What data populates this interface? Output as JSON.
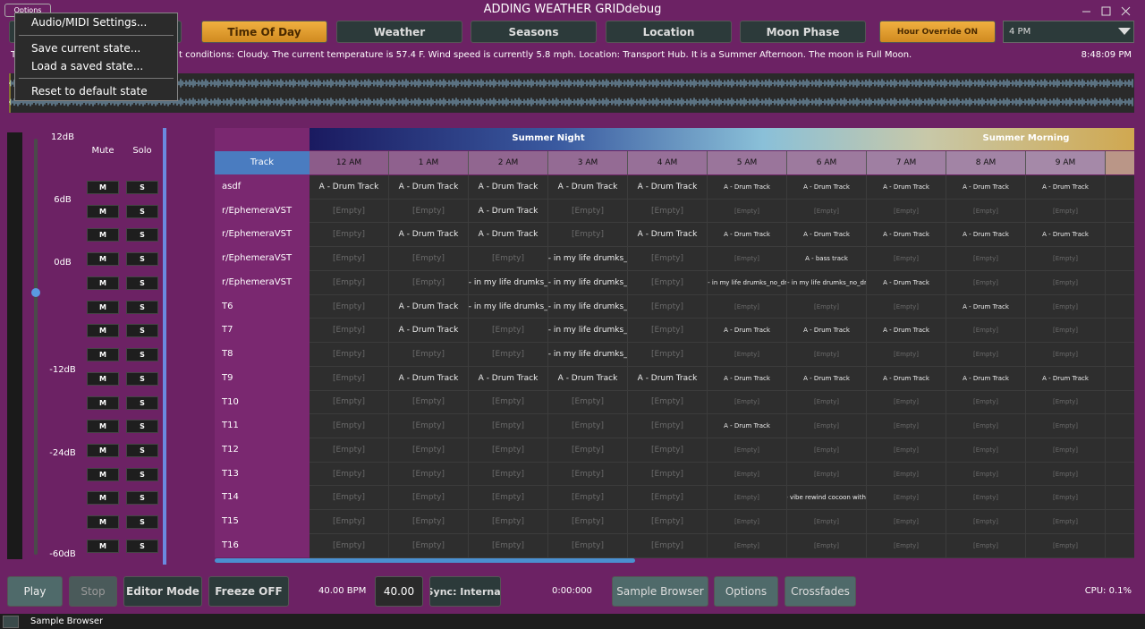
{
  "window": {
    "title": "ADDING WEATHER GRIDdebug",
    "options_button": "Options"
  },
  "menu": {
    "items": [
      "Audio/MIDI Settings...",
      "Save current state...",
      "Load a saved state...",
      "Reset to default state"
    ]
  },
  "tabs": {
    "items": [
      "Time Of Day",
      "Weather",
      "Seasons",
      "Location",
      "Moon Phase"
    ],
    "active": "Time Of Day"
  },
  "hour_override": "Hour Override ON",
  "hour_select": "4 PM",
  "status": {
    "prefix": "T",
    "text": "t conditions: Cloudy. The current temperature is 57.4 F. Wind speed is currently 5.8 mph. Location: Transport Hub. It is a Summer Afternoon. The moon is Full Moon.",
    "clock": "8:48:09 PM"
  },
  "mixer": {
    "db_labels": [
      "12dB",
      "6dB",
      "0dB",
      "-12dB",
      "-24dB",
      "-60dB"
    ],
    "mute_header": "Mute",
    "solo_header": "Solo",
    "mute_button": "M",
    "solo_button": "S"
  },
  "grid": {
    "bands": [
      "Summer Night",
      "Summer Morning"
    ],
    "track_header": "Track",
    "hours": [
      "12 AM",
      "1 AM",
      "2 AM",
      "3 AM",
      "4 AM",
      "5 AM",
      "6 AM",
      "7 AM",
      "8 AM",
      "9 AM"
    ],
    "tracks": [
      {
        "name": "asdf",
        "cells": [
          "A - Drum Track",
          "A - Drum Track",
          "A - Drum Track",
          "A - Drum Track",
          "A - Drum Track",
          "A - Drum Track",
          "A - Drum Track",
          "A - Drum Track",
          "A - Drum Track",
          "A - Drum Track"
        ]
      },
      {
        "name": "r/EphemeraVST",
        "cells": [
          "[Empty]",
          "[Empty]",
          "A - Drum Track",
          "[Empty]",
          "[Empty]",
          "[Empty]",
          "[Empty]",
          "[Empty]",
          "[Empty]",
          "[Empty]"
        ]
      },
      {
        "name": "r/EphemeraVST",
        "cells": [
          "[Empty]",
          "A - Drum Track",
          "A - Drum Track",
          "[Empty]",
          "A - Drum Track",
          "A - Drum Track",
          "A - Drum Track",
          "A - Drum Track",
          "A - Drum Track",
          "A - Drum Track"
        ]
      },
      {
        "name": "r/EphemeraVST",
        "cells": [
          "[Empty]",
          "[Empty]",
          "[Empty]",
          "A - in my life drumks_...",
          "[Empty]",
          "[Empty]",
          "A - bass track",
          "[Empty]",
          "[Empty]",
          "[Empty]"
        ]
      },
      {
        "name": "r/EphemeraVST",
        "cells": [
          "[Empty]",
          "[Empty]",
          "A - in my life drumks_...",
          "A - in my life drumks_...",
          "[Empty]",
          "A - in my life drumks_no_dr...",
          "A - in my life drumks_no_dr...",
          "A - Drum Track",
          "[Empty]",
          "[Empty]"
        ]
      },
      {
        "name": "T6",
        "cells": [
          "[Empty]",
          "A - Drum Track",
          "A - in my life drumks_...",
          "A - in my life drumks_...",
          "[Empty]",
          "[Empty]",
          "[Empty]",
          "[Empty]",
          "A - Drum Track",
          "[Empty]"
        ]
      },
      {
        "name": "T7",
        "cells": [
          "[Empty]",
          "A - Drum Track",
          "[Empty]",
          "A - in my life drumks_...",
          "[Empty]",
          "A - Drum Track",
          "A - Drum Track",
          "A - Drum Track",
          "[Empty]",
          "[Empty]"
        ]
      },
      {
        "name": "T8",
        "cells": [
          "[Empty]",
          "[Empty]",
          "[Empty]",
          "A - in my life drumks_...",
          "[Empty]",
          "[Empty]",
          "[Empty]",
          "[Empty]",
          "[Empty]",
          "[Empty]"
        ]
      },
      {
        "name": "T9",
        "cells": [
          "[Empty]",
          "A - Drum Track",
          "A - Drum Track",
          "A - Drum Track",
          "A - Drum Track",
          "A - Drum Track",
          "A - Drum Track",
          "A - Drum Track",
          "A - Drum Track",
          "A - Drum Track"
        ]
      },
      {
        "name": "T10",
        "cells": [
          "[Empty]",
          "[Empty]",
          "[Empty]",
          "[Empty]",
          "[Empty]",
          "[Empty]",
          "[Empty]",
          "[Empty]",
          "[Empty]",
          "[Empty]"
        ]
      },
      {
        "name": "T11",
        "cells": [
          "[Empty]",
          "[Empty]",
          "[Empty]",
          "[Empty]",
          "[Empty]",
          "A - Drum Track",
          "[Empty]",
          "[Empty]",
          "[Empty]",
          "[Empty]"
        ]
      },
      {
        "name": "T12",
        "cells": [
          "[Empty]",
          "[Empty]",
          "[Empty]",
          "[Empty]",
          "[Empty]",
          "[Empty]",
          "[Empty]",
          "[Empty]",
          "[Empty]",
          "[Empty]"
        ]
      },
      {
        "name": "T13",
        "cells": [
          "[Empty]",
          "[Empty]",
          "[Empty]",
          "[Empty]",
          "[Empty]",
          "[Empty]",
          "[Empty]",
          "[Empty]",
          "[Empty]",
          "[Empty]"
        ]
      },
      {
        "name": "T14",
        "cells": [
          "[Empty]",
          "[Empty]",
          "[Empty]",
          "[Empty]",
          "[Empty]",
          "[Empty]",
          "A - vibe rewind cocoon with ...",
          "[Empty]",
          "[Empty]",
          "[Empty]"
        ]
      },
      {
        "name": "T15",
        "cells": [
          "[Empty]",
          "[Empty]",
          "[Empty]",
          "[Empty]",
          "[Empty]",
          "[Empty]",
          "[Empty]",
          "[Empty]",
          "[Empty]",
          "[Empty]"
        ]
      },
      {
        "name": "T16",
        "cells": [
          "[Empty]",
          "[Empty]",
          "[Empty]",
          "[Empty]",
          "[Empty]",
          "[Empty]",
          "[Empty]",
          "[Empty]",
          "[Empty]",
          "[Empty]"
        ]
      }
    ]
  },
  "transport": {
    "play": "Play",
    "stop": "Stop",
    "editor_mode": "Editor Mode",
    "freeze": "Freeze OFF",
    "bpm_text": "40.00 BPM",
    "bpm_input": "40.00",
    "sync": "Sync: Internal",
    "time": "0:00:000",
    "sample_browser": "Sample Browser",
    "options": "Options",
    "crossfades": "Crossfades",
    "cpu": "CPU: 0.1%"
  },
  "footer": {
    "label": "Sample Browser"
  }
}
